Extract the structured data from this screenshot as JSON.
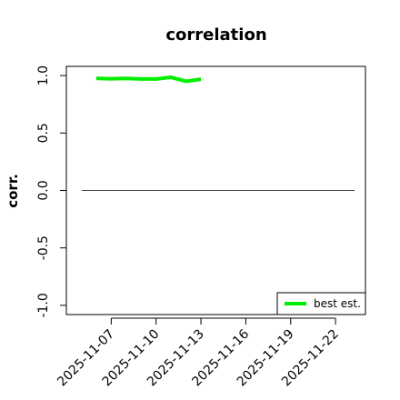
{
  "chart_data": {
    "type": "line",
    "title": "correlation",
    "y_label": "corr.",
    "x": [
      "2025-11-06",
      "2025-11-07",
      "2025-11-08",
      "2025-11-09",
      "2025-11-10",
      "2025-11-11",
      "2025-11-12",
      "2025-11-13"
    ],
    "series": [
      {
        "name": "best est.",
        "color": "#00ee00",
        "values": [
          0.975,
          0.972,
          0.975,
          0.97,
          0.97,
          0.985,
          0.95,
          0.968
        ]
      }
    ],
    "hline": 0,
    "xlim": [
      "2025-11-04",
      "2025-11-24"
    ],
    "xticks": [
      "2025-11-07",
      "2025-11-10",
      "2025-11-13",
      "2025-11-16",
      "2025-11-19",
      "2025-11-22"
    ],
    "highlight_xtick": "2025-11-13",
    "highlight_color": "#228b22",
    "ylim": [
      -1.08,
      1.08
    ],
    "yticks": [
      {
        "value": -1,
        "label": "-1.0"
      },
      {
        "value": -0.5,
        "label": "-0.5"
      },
      {
        "value": 0,
        "label": "0.0"
      },
      {
        "value": 0.5,
        "label": "0.5"
      },
      {
        "value": 1,
        "label": "1.0"
      }
    ],
    "legend": "bottomright"
  }
}
